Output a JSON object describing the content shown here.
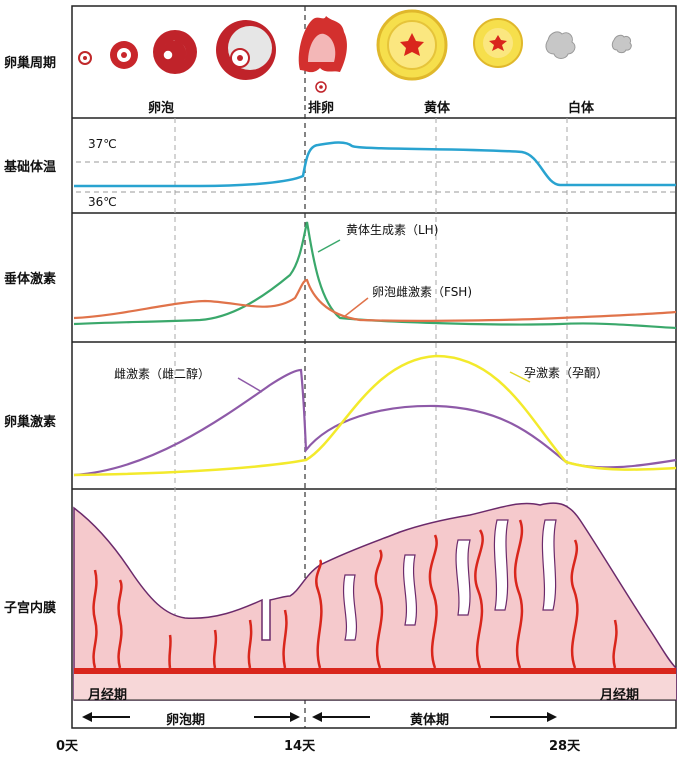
{
  "row_labels": {
    "ovarian_cycle": "卵巢周期",
    "basal_body_temp": "基础体温",
    "pituitary_hormones": "垂体激素",
    "ovarian_hormones": "卵巢激素",
    "endometrium": "子宫内膜"
  },
  "ovarian_stages": {
    "follicle": "卵泡",
    "ovulation": "排卵",
    "corpus_luteum": "黄体",
    "corpus_albicans": "白体"
  },
  "temperature": {
    "high": "37℃",
    "low": "36℃"
  },
  "pituitary": {
    "lh": "黄体生成素（LH)",
    "fsh": "卵泡雌激素（FSH)"
  },
  "ovarian_hormones": {
    "estrogen": "雌激素（雌二醇）",
    "progesterone": "孕激素（孕酮）"
  },
  "phases": {
    "menstruation_left": "月经期",
    "menstruation_right": "月经期",
    "follicular": "卵泡期",
    "luteal": "黄体期"
  },
  "days": {
    "d0": "0天",
    "d14": "14天",
    "d28": "28天"
  },
  "colors": {
    "temperature_line": "#29a3d0",
    "lh_line": "#3aa86b",
    "fsh_line": "#e0734a",
    "estrogen_line": "#8e5aa8",
    "progesterone_line": "#f3ea2c",
    "endometrium_fill": "#f5c9cc",
    "vessel": "#d9261c",
    "endometrium_outline": "#6b2a6b"
  }
}
